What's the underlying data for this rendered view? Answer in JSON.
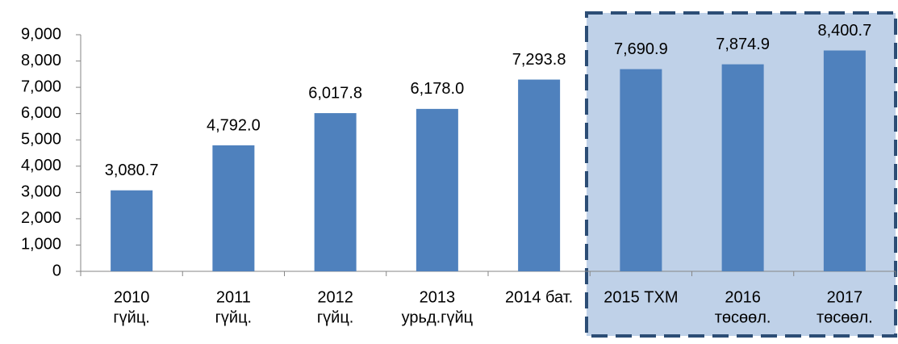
{
  "chart_data": {
    "type": "bar",
    "categories": [
      [
        "2010",
        "гүйц."
      ],
      [
        "2011",
        "гүйц."
      ],
      [
        "2012",
        "гүйц."
      ],
      [
        "2013",
        "урьд.гүйц"
      ],
      [
        "2014 бат."
      ],
      [
        "2015 ТХМ"
      ],
      [
        "2016",
        "төсөөл."
      ],
      [
        "2017",
        "төсөөл."
      ]
    ],
    "values": [
      3080.7,
      4792.0,
      6017.8,
      6178.0,
      7293.8,
      7690.9,
      7874.9,
      8400.7
    ],
    "value_labels": [
      "3,080.7",
      "4,792.0",
      "6,017.8",
      "6,178.0",
      "7,293.8",
      "7,690.9",
      "7,874.9",
      "8,400.7"
    ],
    "color": "#4f81bd",
    "ylim": [
      0,
      9000
    ],
    "yticks": [
      0,
      {
        "value": 1000,
        "label": "1,000"
      },
      {
        "value": 2000,
        "label": "2,000"
      },
      {
        "value": 3000,
        "label": "3,000"
      },
      {
        "value": 4000,
        "label": "4,000"
      },
      {
        "value": 5000,
        "label": "5,000"
      },
      {
        "value": 6000,
        "label": "6,000"
      },
      {
        "value": 7000,
        "label": "7,000"
      },
      {
        "value": 8000,
        "label": "8,000"
      },
      {
        "value": 9000,
        "label": "9,000"
      }
    ]
  }
}
